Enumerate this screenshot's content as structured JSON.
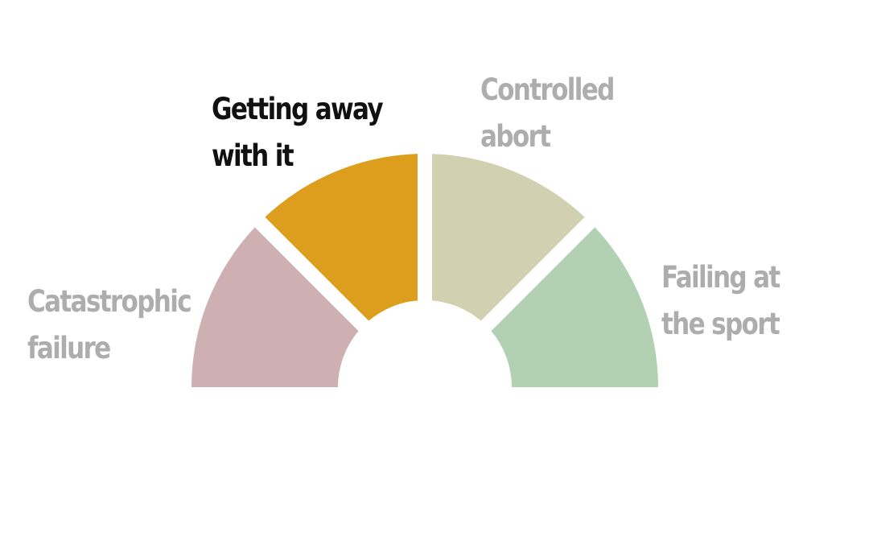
{
  "diagram": {
    "segments": [
      {
        "id": "catastrophic-failure",
        "lines": [
          "Catastrophic",
          "failure"
        ],
        "color": "#cfb0b2",
        "state": "muted"
      },
      {
        "id": "getting-away-with-it",
        "lines": [
          "Getting away",
          "with it"
        ],
        "color": "#dc9e1c",
        "state": "highlighted"
      },
      {
        "id": "controlled-abort",
        "lines": [
          "Controlled",
          "abort"
        ],
        "color": "#d1d1b2",
        "state": "muted"
      },
      {
        "id": "failing-at-the-sport",
        "lines": [
          "Failing at",
          "the sport"
        ],
        "color": "#b2d1b2",
        "state": "muted"
      }
    ],
    "colors": {
      "label_muted": "#adadad",
      "label_highlighted": "#111111"
    }
  }
}
